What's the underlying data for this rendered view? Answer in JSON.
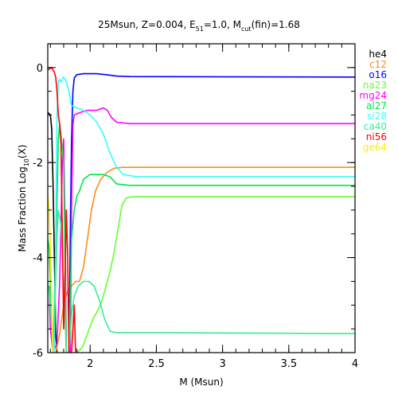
{
  "chart_data": {
    "type": "line",
    "title": {
      "prefix": "25Msun, Z=0.004, E",
      "e_sub": "51",
      "mid": "=1.0, M",
      "m_sub": "cut",
      "suffix": "(fin)=1.68"
    },
    "xlabel": "M (Msun)",
    "ylabel": {
      "prefix": "Mass Fraction Log",
      "sub": "10",
      "suffix": "(X)"
    },
    "xlim": [
      1.68,
      4.0
    ],
    "ylim": [
      -6,
      0.5
    ],
    "x_ticks": [
      {
        "value": 2.0,
        "label": "2"
      },
      {
        "value": 2.5,
        "label": "2.5"
      },
      {
        "value": 3.0,
        "label": "3"
      },
      {
        "value": 3.5,
        "label": "3.5"
      },
      {
        "value": 4.0,
        "label": "4"
      }
    ],
    "y_ticks": [
      {
        "value": 0,
        "label": "0"
      },
      {
        "value": -2,
        "label": "-2"
      },
      {
        "value": -4,
        "label": "-4"
      },
      {
        "value": -6,
        "label": "-6"
      }
    ],
    "legend_position": "right, outside plot",
    "series": [
      {
        "name": "he4",
        "color": "#000000",
        "points": [
          [
            1.68,
            -0.95
          ],
          [
            1.69,
            -0.97
          ],
          [
            1.7,
            -1.0
          ],
          [
            1.71,
            -1.3
          ],
          [
            1.72,
            -2.5
          ],
          [
            1.73,
            -4.0
          ],
          [
            1.74,
            -5.6
          ],
          [
            1.75,
            -6.0
          ]
        ]
      },
      {
        "name": "c12",
        "color": "#ff8c1a",
        "points": [
          [
            1.74,
            -6.0
          ],
          [
            1.77,
            -5.6
          ],
          [
            1.8,
            -5.0
          ],
          [
            1.83,
            -4.7
          ],
          [
            1.86,
            -4.6
          ],
          [
            1.89,
            -4.5
          ],
          [
            1.92,
            -4.5
          ],
          [
            1.95,
            -4.2
          ],
          [
            1.98,
            -3.6
          ],
          [
            2.01,
            -3.0
          ],
          [
            2.04,
            -2.6
          ],
          [
            2.08,
            -2.35
          ],
          [
            2.13,
            -2.2
          ],
          [
            2.18,
            -2.12
          ],
          [
            2.25,
            -2.1
          ],
          [
            2.4,
            -2.1
          ],
          [
            4.0,
            -2.1
          ]
        ]
      },
      {
        "name": "o16",
        "color": "#0000ff",
        "points": [
          [
            1.84,
            -6.0
          ],
          [
            1.85,
            -3.5
          ],
          [
            1.86,
            -1.5
          ],
          [
            1.87,
            -0.5
          ],
          [
            1.88,
            -0.22
          ],
          [
            1.9,
            -0.15
          ],
          [
            1.95,
            -0.13
          ],
          [
            2.05,
            -0.13
          ],
          [
            2.12,
            -0.15
          ],
          [
            2.2,
            -0.18
          ],
          [
            2.3,
            -0.19
          ],
          [
            4.0,
            -0.2
          ]
        ]
      },
      {
        "name": "na23",
        "color": "#66ff33",
        "points": [
          [
            1.9,
            -6.0
          ],
          [
            1.94,
            -5.9
          ],
          [
            1.98,
            -5.6
          ],
          [
            2.02,
            -5.3
          ],
          [
            2.06,
            -5.1
          ],
          [
            2.09,
            -4.9
          ],
          [
            2.12,
            -4.6
          ],
          [
            2.15,
            -4.3
          ],
          [
            2.18,
            -3.9
          ],
          [
            2.21,
            -3.4
          ],
          [
            2.24,
            -2.9
          ],
          [
            2.27,
            -2.75
          ],
          [
            2.32,
            -2.72
          ],
          [
            2.5,
            -2.72
          ],
          [
            4.0,
            -2.72
          ]
        ]
      },
      {
        "name": "mg24",
        "color": "#ff00ff",
        "points": [
          [
            1.69,
            -4.6
          ],
          [
            1.7,
            -5.5
          ],
          [
            1.72,
            -6.0
          ],
          [
            1.75,
            -5.8
          ],
          [
            1.77,
            -4.5
          ],
          [
            1.79,
            -2.0
          ],
          [
            1.8,
            -1.5
          ],
          [
            1.81,
            -3.2
          ],
          [
            1.82,
            -6.0
          ],
          [
            1.85,
            -6.0
          ],
          [
            1.86,
            -3.0
          ],
          [
            1.87,
            -1.2
          ],
          [
            1.88,
            -1.0
          ],
          [
            1.92,
            -0.95
          ],
          [
            1.98,
            -0.9
          ],
          [
            2.05,
            -0.9
          ],
          [
            2.1,
            -0.85
          ],
          [
            2.13,
            -0.9
          ],
          [
            2.16,
            -1.05
          ],
          [
            2.2,
            -1.15
          ],
          [
            2.3,
            -1.18
          ],
          [
            4.0,
            -1.18
          ]
        ]
      },
      {
        "name": "al27",
        "color": "#00e64d",
        "points": [
          [
            1.68,
            -3.6
          ],
          [
            1.69,
            -3.8
          ],
          [
            1.7,
            -4.5
          ],
          [
            1.71,
            -5.5
          ],
          [
            1.72,
            -6.0
          ],
          [
            1.74,
            -4.0
          ],
          [
            1.76,
            -1.5
          ],
          [
            1.77,
            -1.2
          ],
          [
            1.78,
            -1.4
          ],
          [
            1.8,
            -2.0
          ],
          [
            1.81,
            -4.0
          ],
          [
            1.82,
            -6.0
          ],
          [
            1.84,
            -6.0
          ],
          [
            1.86,
            -3.6
          ],
          [
            1.88,
            -3.0
          ],
          [
            1.9,
            -2.7
          ],
          [
            1.92,
            -2.6
          ],
          [
            1.95,
            -2.35
          ],
          [
            2.0,
            -2.25
          ],
          [
            2.05,
            -2.25
          ],
          [
            2.1,
            -2.25
          ],
          [
            2.15,
            -2.3
          ],
          [
            2.2,
            -2.45
          ],
          [
            2.3,
            -2.48
          ],
          [
            4.0,
            -2.48
          ]
        ]
      },
      {
        "name": "si28",
        "color": "#33ffff",
        "points": [
          [
            1.73,
            -6.0
          ],
          [
            1.74,
            -3.5
          ],
          [
            1.75,
            -1.0
          ],
          [
            1.76,
            -0.3
          ],
          [
            1.77,
            -0.25
          ],
          [
            1.78,
            -0.3
          ],
          [
            1.79,
            -0.25
          ],
          [
            1.8,
            -0.2
          ],
          [
            1.82,
            -0.3
          ],
          [
            1.84,
            -0.5
          ],
          [
            1.86,
            -0.8
          ],
          [
            1.9,
            -0.85
          ],
          [
            1.95,
            -0.9
          ],
          [
            2.0,
            -1.0
          ],
          [
            2.05,
            -1.15
          ],
          [
            2.1,
            -1.4
          ],
          [
            2.15,
            -1.8
          ],
          [
            2.2,
            -2.1
          ],
          [
            2.25,
            -2.25
          ],
          [
            2.35,
            -2.3
          ],
          [
            4.0,
            -2.3
          ]
        ]
      },
      {
        "name": "ca40",
        "color": "#33ee99",
        "points": [
          [
            1.68,
            -4.5
          ],
          [
            1.7,
            -5.0
          ],
          [
            1.72,
            -6.0
          ],
          [
            1.74,
            -4.5
          ],
          [
            1.75,
            -3.5
          ],
          [
            1.76,
            -3.0
          ],
          [
            1.78,
            -3.3
          ],
          [
            1.8,
            -4.5
          ],
          [
            1.82,
            -6.0
          ],
          [
            1.84,
            -6.0
          ],
          [
            1.86,
            -5.2
          ],
          [
            1.88,
            -4.8
          ],
          [
            1.91,
            -4.6
          ],
          [
            1.95,
            -4.5
          ],
          [
            1.99,
            -4.5
          ],
          [
            2.03,
            -4.6
          ],
          [
            2.07,
            -4.9
          ],
          [
            2.11,
            -5.3
          ],
          [
            2.15,
            -5.55
          ],
          [
            2.2,
            -5.58
          ],
          [
            2.5,
            -5.58
          ],
          [
            4.0,
            -5.6
          ]
        ]
      },
      {
        "name": "ni56",
        "color": "#ff0000",
        "points": [
          [
            1.68,
            -0.05
          ],
          [
            1.7,
            -0.02
          ],
          [
            1.71,
            0.0
          ],
          [
            1.72,
            -0.05
          ],
          [
            1.73,
            -0.1
          ],
          [
            1.74,
            -0.2
          ],
          [
            1.75,
            -0.5
          ],
          [
            1.76,
            -1.0
          ],
          [
            1.77,
            -1.2
          ],
          [
            1.78,
            -1.6
          ],
          [
            1.79,
            -3.5
          ],
          [
            1.8,
            -5.5
          ],
          [
            1.81,
            -4.5
          ],
          [
            1.82,
            -3.0
          ],
          [
            1.83,
            -4.0
          ],
          [
            1.84,
            -6.0
          ],
          [
            1.86,
            -6.0
          ],
          [
            1.87,
            -5.5
          ],
          [
            1.88,
            -5.0
          ],
          [
            1.89,
            -6.0
          ]
        ]
      },
      {
        "name": "ge64",
        "color": "#ffee00",
        "points": [
          [
            1.68,
            -2.7
          ],
          [
            1.69,
            -3.0
          ],
          [
            1.7,
            -3.8
          ],
          [
            1.71,
            -5.0
          ],
          [
            1.72,
            -6.0
          ]
        ]
      }
    ]
  }
}
